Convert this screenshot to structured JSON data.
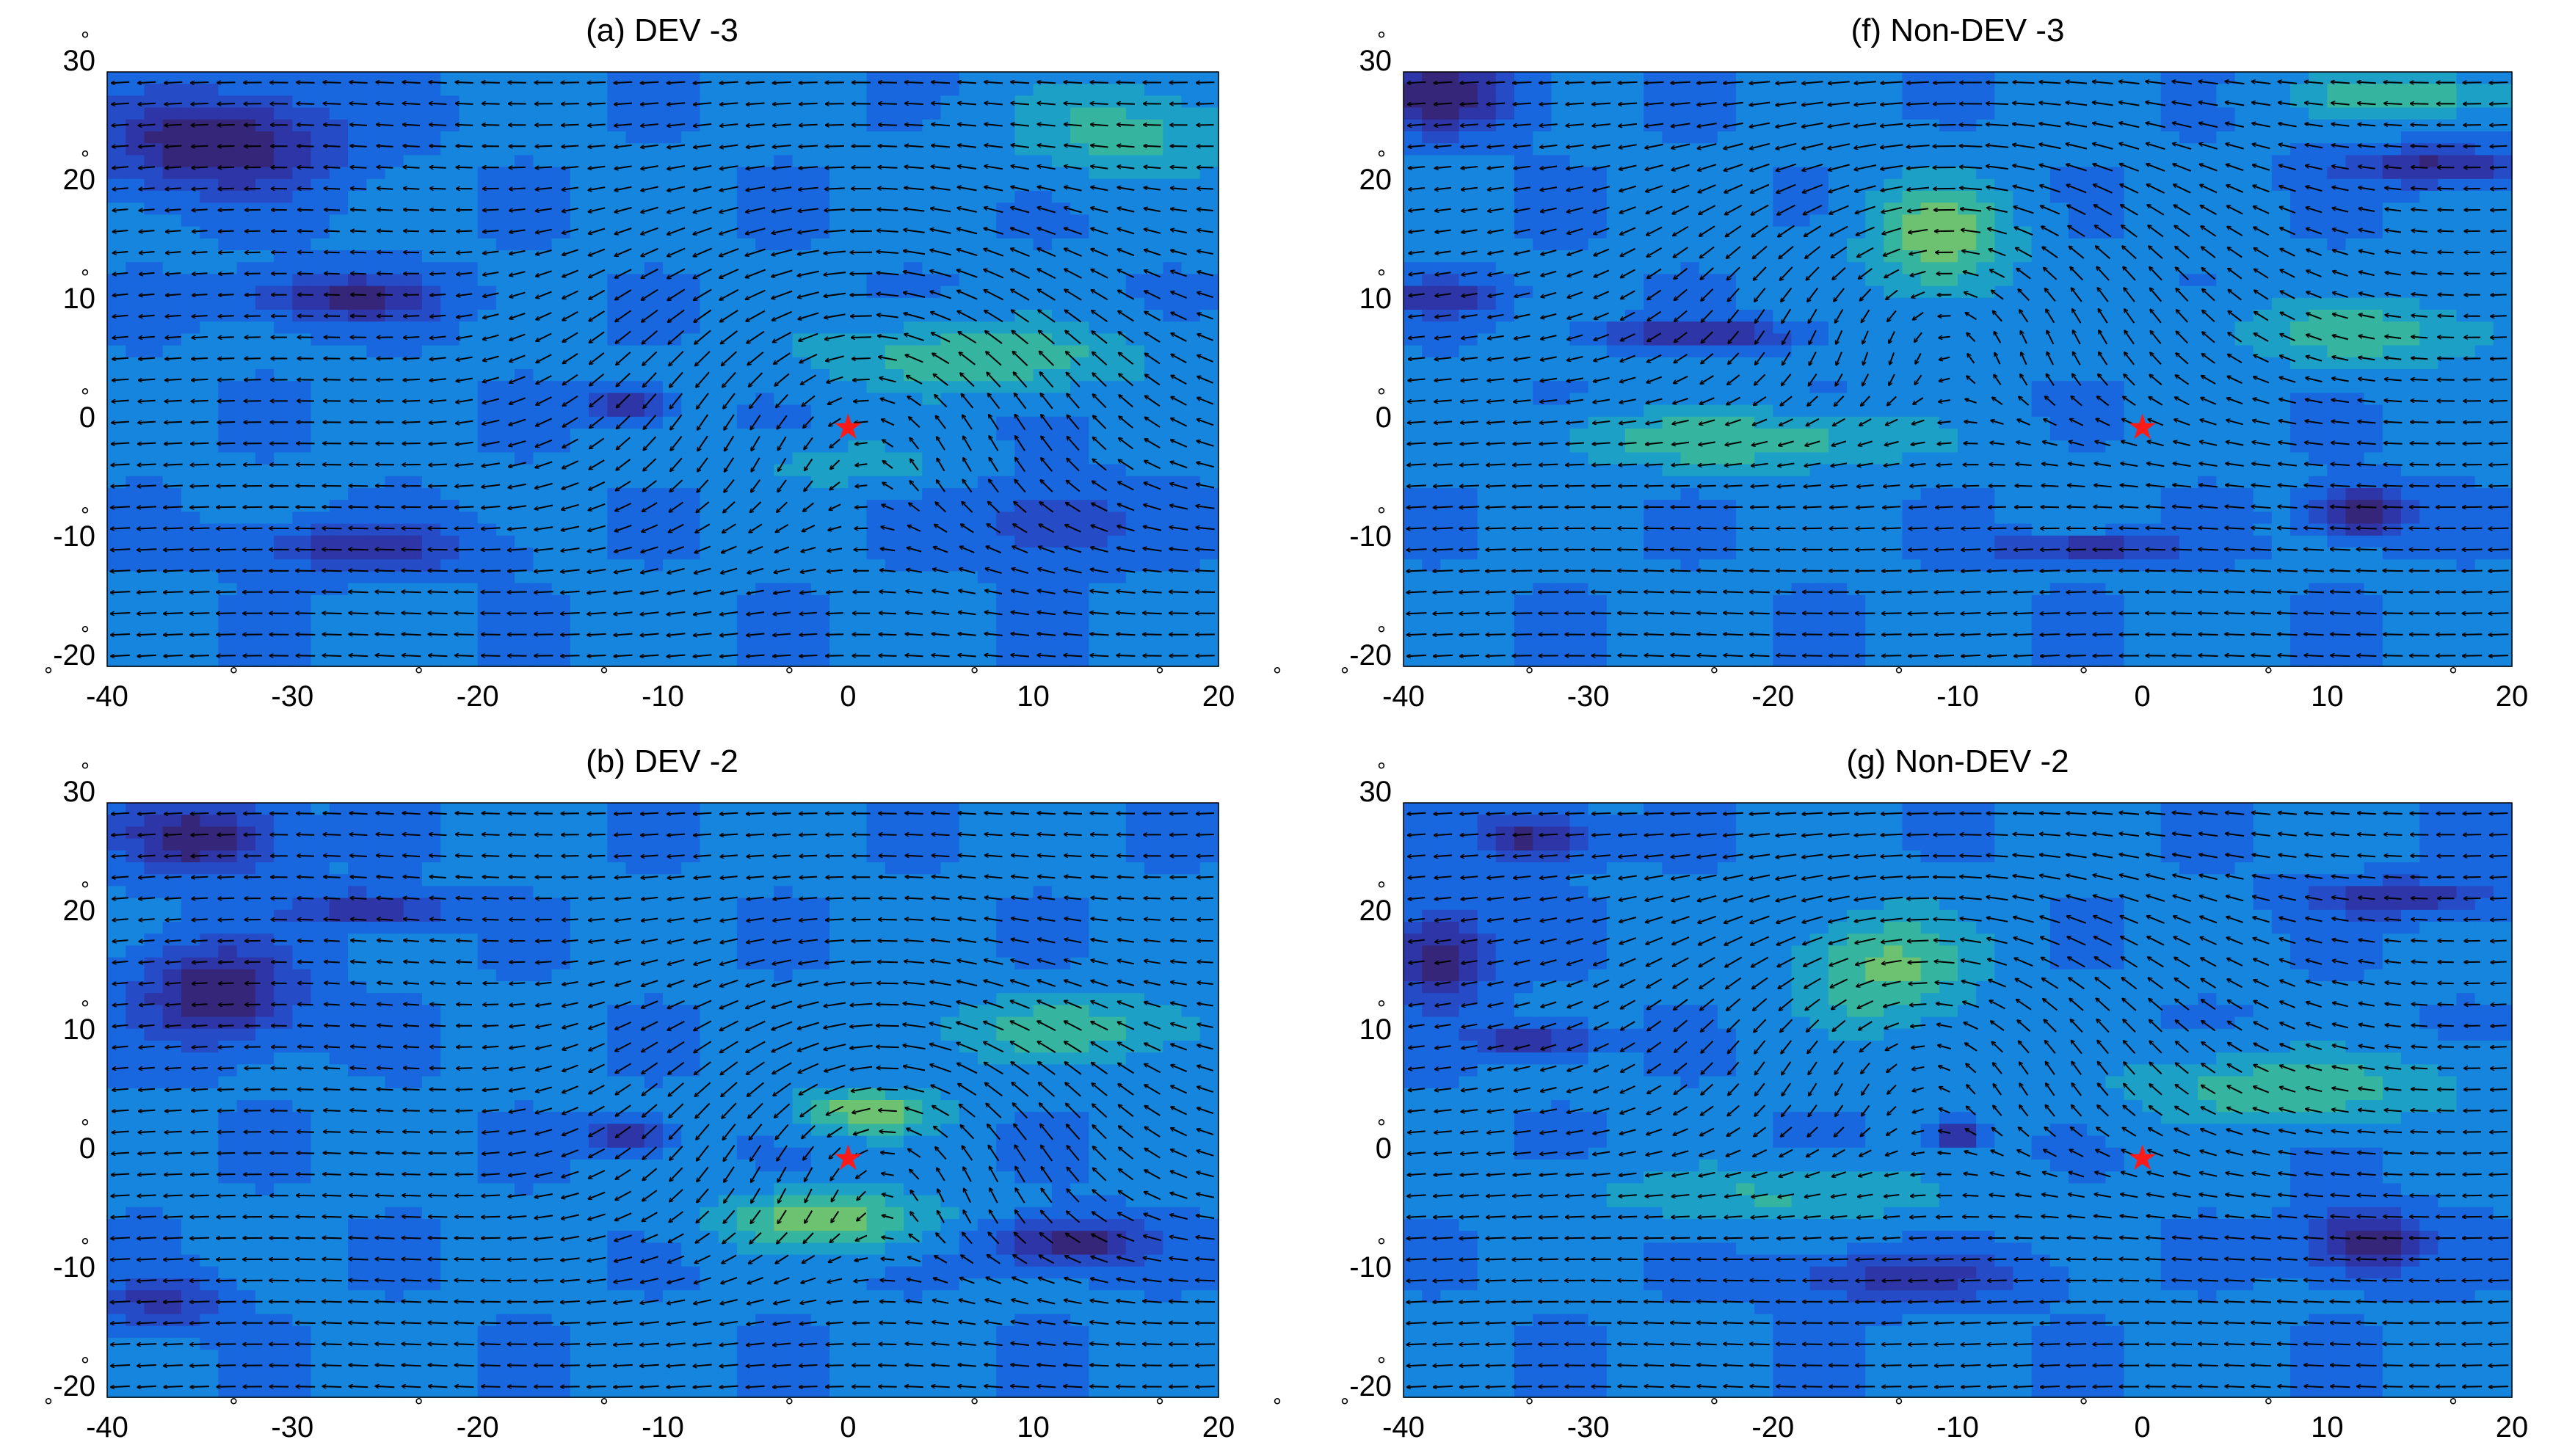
{
  "figure": {
    "panels": [
      {
        "title": "(a) DEV -3"
      },
      {
        "title": "(f) Non-DEV -3"
      },
      {
        "title": "(b) DEV -2"
      },
      {
        "title": "(g) Non-DEV -2"
      }
    ],
    "x_tick_labels": [
      "-40",
      "-30",
      "-20",
      "-10",
      "0",
      "10",
      "20"
    ],
    "y_tick_labels": [
      "30",
      "20",
      "10",
      "0",
      "-10",
      "-20"
    ],
    "degree_symbol": "°",
    "marker_symbol": "★",
    "colors": {
      "background": "#ffffff",
      "contour_low": "#35267a",
      "contour_mid": "#1f6fe0",
      "contour_high": "#7cc06a",
      "arrow": "#000000",
      "marker": "#ff1a1a"
    }
  },
  "chart_data": [
    {
      "type": "heatmap",
      "overlay": "vector-arrows",
      "title": "(a) DEV -3",
      "x_ticks": [
        -40,
        -30,
        -20,
        -10,
        0,
        10,
        20
      ],
      "y_ticks": [
        30,
        20,
        10,
        0,
        -10,
        -20
      ],
      "xlim": [
        -40,
        20
      ],
      "ylim": [
        -21,
        29
      ],
      "center_marker": {
        "x": 0,
        "y": -1
      },
      "features": [
        {
          "kind": "low",
          "x": -34,
          "y": 23,
          "sx": 6,
          "sy": 4,
          "amp": -0.55
        },
        {
          "kind": "low",
          "x": -27,
          "y": 10,
          "sx": 5,
          "sy": 2,
          "amp": -0.45
        },
        {
          "kind": "low",
          "x": -12,
          "y": 1,
          "sx": 2,
          "sy": 1.2,
          "amp": -0.5
        },
        {
          "kind": "low",
          "x": -26,
          "y": -11,
          "sx": 6,
          "sy": 2,
          "amp": -0.35
        },
        {
          "kind": "low",
          "x": 11,
          "y": -9,
          "sx": 4,
          "sy": 3,
          "amp": -0.3
        },
        {
          "kind": "high",
          "x": 7,
          "y": 5,
          "sx": 9,
          "sy": 3,
          "amp": 0.35
        },
        {
          "kind": "high",
          "x": 15,
          "y": 24,
          "sx": 6,
          "sy": 4,
          "amp": 0.3
        },
        {
          "kind": "high",
          "x": 0,
          "y": -4,
          "sx": 5,
          "sy": 2,
          "amp": 0.2
        }
      ],
      "vortex": {
        "x": 1,
        "y": 3,
        "r": 9,
        "strength": 0.8
      },
      "base_flow": -0.8
    },
    {
      "type": "heatmap",
      "overlay": "vector-arrows",
      "title": "(f) Non-DEV -3",
      "x_ticks": [
        -40,
        -30,
        -20,
        -10,
        0,
        10,
        20
      ],
      "y_ticks": [
        30,
        20,
        10,
        0,
        -10,
        -20
      ],
      "xlim": [
        -40,
        20
      ],
      "ylim": [
        -21,
        29
      ],
      "center_marker": {
        "x": 0,
        "y": -1
      },
      "features": [
        {
          "kind": "high",
          "x": -11,
          "y": 15,
          "sx": 4,
          "sy": 5,
          "amp": 0.45
        },
        {
          "kind": "high",
          "x": -22,
          "y": -2,
          "sx": 10,
          "sy": 2.5,
          "amp": 0.35
        },
        {
          "kind": "high",
          "x": 12,
          "y": 7,
          "sx": 8,
          "sy": 3,
          "amp": 0.3
        },
        {
          "kind": "high",
          "x": 14,
          "y": 27,
          "sx": 6,
          "sy": 2,
          "amp": 0.35
        },
        {
          "kind": "low",
          "x": 12,
          "y": -8,
          "sx": 2.5,
          "sy": 2,
          "amp": -0.55
        },
        {
          "kind": "low",
          "x": -3,
          "y": -11,
          "sx": 5,
          "sy": 1,
          "amp": -0.4
        },
        {
          "kind": "low",
          "x": -24,
          "y": 7,
          "sx": 5,
          "sy": 1,
          "amp": -0.45
        },
        {
          "kind": "low",
          "x": 16,
          "y": 21,
          "sx": 5,
          "sy": 1.5,
          "amp": -0.45
        },
        {
          "kind": "low",
          "x": -38,
          "y": 27,
          "sx": 4,
          "sy": 3,
          "amp": -0.5
        },
        {
          "kind": "low",
          "x": -38,
          "y": 10,
          "sx": 3,
          "sy": 1.5,
          "amp": -0.35
        }
      ],
      "vortex": {
        "x": -11,
        "y": 12,
        "r": 9,
        "strength": 0.7
      },
      "base_flow": -0.85
    },
    {
      "type": "heatmap",
      "overlay": "vector-arrows",
      "title": "(b) DEV -2",
      "x_ticks": [
        -40,
        -30,
        -20,
        -10,
        0,
        10,
        20
      ],
      "y_ticks": [
        30,
        20,
        10,
        0,
        -10,
        -20
      ],
      "xlim": [
        -40,
        20
      ],
      "ylim": [
        -21,
        29
      ],
      "center_marker": {
        "x": 0,
        "y": -1
      },
      "features": [
        {
          "kind": "low",
          "x": -34,
          "y": 13,
          "sx": 4,
          "sy": 4,
          "amp": -0.55
        },
        {
          "kind": "low",
          "x": -35,
          "y": 26,
          "sx": 4,
          "sy": 3,
          "amp": -0.5
        },
        {
          "kind": "low",
          "x": -26,
          "y": 20,
          "sx": 4,
          "sy": 1.5,
          "amp": -0.4
        },
        {
          "kind": "low",
          "x": -12,
          "y": 1,
          "sx": 2,
          "sy": 1.2,
          "amp": -0.5
        },
        {
          "kind": "low",
          "x": 12,
          "y": -8,
          "sx": 4,
          "sy": 2,
          "amp": -0.5
        },
        {
          "kind": "low",
          "x": -37,
          "y": -13,
          "sx": 3,
          "sy": 2,
          "amp": -0.35
        },
        {
          "kind": "high",
          "x": 1,
          "y": 3,
          "sx": 4,
          "sy": 2,
          "amp": 0.45
        },
        {
          "kind": "high",
          "x": -1,
          "y": -6,
          "sx": 6,
          "sy": 2.5,
          "amp": 0.45
        },
        {
          "kind": "high",
          "x": 12,
          "y": 10,
          "sx": 8,
          "sy": 3,
          "amp": 0.3
        }
      ],
      "vortex": {
        "x": 2,
        "y": 2,
        "r": 8,
        "strength": 0.85
      },
      "base_flow": -0.8
    },
    {
      "type": "heatmap",
      "overlay": "vector-arrows",
      "title": "(g) Non-DEV -2",
      "x_ticks": [
        -40,
        -30,
        -20,
        -10,
        0,
        10,
        20
      ],
      "y_ticks": [
        30,
        20,
        10,
        0,
        -10,
        -20
      ],
      "xlim": [
        -40,
        20
      ],
      "ylim": [
        -21,
        29
      ],
      "center_marker": {
        "x": 0,
        "y": -1
      },
      "features": [
        {
          "kind": "high",
          "x": -14,
          "y": 15,
          "sx": 5,
          "sy": 5,
          "amp": 0.4
        },
        {
          "kind": "high",
          "x": 8,
          "y": 5,
          "sx": 9,
          "sy": 3,
          "amp": 0.35
        },
        {
          "kind": "high",
          "x": -20,
          "y": -4,
          "sx": 10,
          "sy": 2.5,
          "amp": 0.25
        },
        {
          "kind": "low",
          "x": 12,
          "y": -8,
          "sx": 3,
          "sy": 2.5,
          "amp": -0.55
        },
        {
          "kind": "low",
          "x": -33,
          "y": 9,
          "sx": 3,
          "sy": 1.2,
          "amp": -0.45
        },
        {
          "kind": "low",
          "x": -38,
          "y": 16,
          "sx": 2.5,
          "sy": 4,
          "amp": -0.5
        },
        {
          "kind": "low",
          "x": -33,
          "y": 26,
          "sx": 3,
          "sy": 2,
          "amp": -0.45
        },
        {
          "kind": "low",
          "x": -10,
          "y": 1,
          "sx": 1.5,
          "sy": 1,
          "amp": -0.45
        },
        {
          "kind": "low",
          "x": -13,
          "y": -11,
          "sx": 6,
          "sy": 2,
          "amp": -0.35
        },
        {
          "kind": "low",
          "x": 14,
          "y": 21,
          "sx": 5,
          "sy": 1.5,
          "amp": -0.4
        }
      ],
      "vortex": {
        "x": -12,
        "y": 11,
        "r": 9,
        "strength": 0.65
      },
      "base_flow": -0.85
    }
  ]
}
